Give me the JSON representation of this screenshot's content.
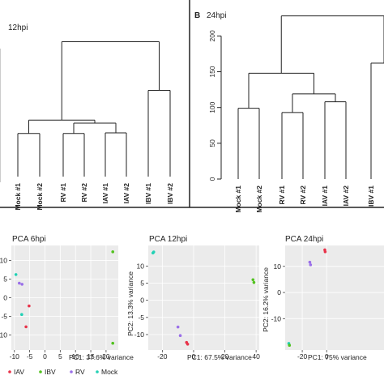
{
  "colors": {
    "iav": "#e8334a",
    "ibv": "#52c21f",
    "rv": "#9a6fe8",
    "mock": "#22d1b5",
    "tree": "#222222",
    "pca_bg": "#ebebeb",
    "grid": "#ffffff"
  },
  "chart_data": [
    {
      "type": "dendrogram",
      "title": "12hpi",
      "panel_letter": "",
      "leaves": [
        {
          "label": "Mock #1",
          "group": "mock"
        },
        {
          "label": "Mock #2",
          "group": "mock"
        },
        {
          "label": "RV #1",
          "group": "rv"
        },
        {
          "label": "RV #2",
          "group": "rv"
        },
        {
          "label": "IAV #1",
          "group": "iav"
        },
        {
          "label": "IAV #2",
          "group": "iav"
        },
        {
          "label": "IBV #1",
          "group": "ibv"
        },
        {
          "label": "IBV #2",
          "group": "ibv"
        }
      ],
      "merges": [
        {
          "left": 0,
          "right": 1,
          "height": 71
        },
        {
          "left": 2,
          "right": 3,
          "height": 71
        },
        {
          "left": 4,
          "right": 5,
          "height": 72
        },
        {
          "left": -2,
          "right": -3,
          "height": 88
        },
        {
          "left": -1,
          "right": -4,
          "height": 93
        },
        {
          "left": 6,
          "right": 7,
          "height": 142
        },
        {
          "left": -5,
          "right": -6,
          "height": 222
        }
      ],
      "ylim": [
        0,
        230
      ]
    },
    {
      "type": "dendrogram",
      "title": "24hpi",
      "panel_letter": "B",
      "yticks": [
        0,
        50,
        100,
        150,
        200
      ],
      "ylim": [
        0,
        230
      ],
      "leaves": [
        {
          "label": "Mock #1",
          "group": "mock"
        },
        {
          "label": "Mock #2",
          "group": "mock"
        },
        {
          "label": "RV #1",
          "group": "rv"
        },
        {
          "label": "RV #2",
          "group": "rv"
        },
        {
          "label": "IAV #1",
          "group": "iav"
        },
        {
          "label": "IAV #2",
          "group": "iav"
        },
        {
          "label": "IBV #1",
          "group": "ibv"
        }
      ],
      "merges": [
        {
          "left": 0,
          "right": 1,
          "height": 99
        },
        {
          "left": 2,
          "right": 3,
          "height": 93
        },
        {
          "left": 4,
          "right": 5,
          "height": 108
        },
        {
          "left": -2,
          "right": -3,
          "height": 119
        },
        {
          "left": -1,
          "right": -4,
          "height": 148
        },
        {
          "left": -5,
          "right": 6,
          "height": 228
        }
      ]
    },
    {
      "type": "scatter",
      "title": "PCA 6hpi",
      "xlabel": "PC1: 37.6% variance",
      "ylabel": "",
      "xlim": [
        -11,
        24
      ],
      "ylim": [
        -14,
        14
      ],
      "xticks": [
        -10,
        -5,
        0,
        5,
        10,
        15,
        20
      ],
      "yticks": [
        10,
        5,
        0,
        -5,
        -10
      ],
      "points": [
        {
          "x": -9.5,
          "y": 6.2,
          "group": "mock"
        },
        {
          "x": -8.4,
          "y": 3.9,
          "group": "rv"
        },
        {
          "x": -7.5,
          "y": 3.6,
          "group": "rv"
        },
        {
          "x": -7.6,
          "y": -4.5,
          "group": "mock"
        },
        {
          "x": -5.2,
          "y": -2.2,
          "group": "iav"
        },
        {
          "x": -6.2,
          "y": -7.8,
          "group": "iav"
        },
        {
          "x": 22.2,
          "y": 12.3,
          "group": "ibv"
        },
        {
          "x": 22.2,
          "y": -12.2,
          "group": "ibv"
        }
      ]
    },
    {
      "type": "scatter",
      "title": "PCA 12hpi",
      "xlabel": "PC1: 67.5% variance",
      "ylabel": "PC2: 13.3% variance",
      "xlim": [
        -29,
        42
      ],
      "ylim": [
        -14.5,
        16
      ],
      "xticks": [
        -20,
        0,
        20,
        40
      ],
      "yticks": [
        10,
        5,
        0,
        -5,
        -10
      ],
      "points": [
        {
          "x": -25.5,
          "y": 14.1,
          "group": "mock"
        },
        {
          "x": -26.0,
          "y": 13.8,
          "group": "mock"
        },
        {
          "x": -10.0,
          "y": -7.8,
          "group": "rv"
        },
        {
          "x": -8.5,
          "y": -10.3,
          "group": "rv"
        },
        {
          "x": -4.5,
          "y": -12.3,
          "group": "iav"
        },
        {
          "x": -3.8,
          "y": -12.8,
          "group": "iav"
        },
        {
          "x": 38.0,
          "y": 6.0,
          "group": "ibv"
        },
        {
          "x": 38.6,
          "y": 5.2,
          "group": "ibv"
        }
      ]
    },
    {
      "type": "scatter",
      "title": "PCA 24hpi",
      "xlabel": "PC1: 75% variance",
      "ylabel": "PC2: 16.2% variance",
      "xlim": [
        -34,
        47
      ],
      "ylim": [
        -22,
        18
      ],
      "xticks": [
        -20,
        0
      ],
      "yticks": [
        10,
        0,
        -10
      ],
      "points": [
        {
          "x": -31.0,
          "y": -19.5,
          "group": "mock"
        },
        {
          "x": -30.5,
          "y": -20.2,
          "group": "ibv"
        },
        {
          "x": -13.8,
          "y": 11.6,
          "group": "rv"
        },
        {
          "x": -13.2,
          "y": 10.6,
          "group": "rv"
        },
        {
          "x": -1.5,
          "y": 16.3,
          "group": "iav"
        },
        {
          "x": -1.2,
          "y": 15.6,
          "group": "iav"
        }
      ]
    }
  ],
  "legend": {
    "items": [
      {
        "label": "IAV",
        "group": "iav"
      },
      {
        "label": "IBV",
        "group": "ibv"
      },
      {
        "label": "RV",
        "group": "rv"
      },
      {
        "label": "Mock",
        "group": "mock"
      }
    ]
  }
}
